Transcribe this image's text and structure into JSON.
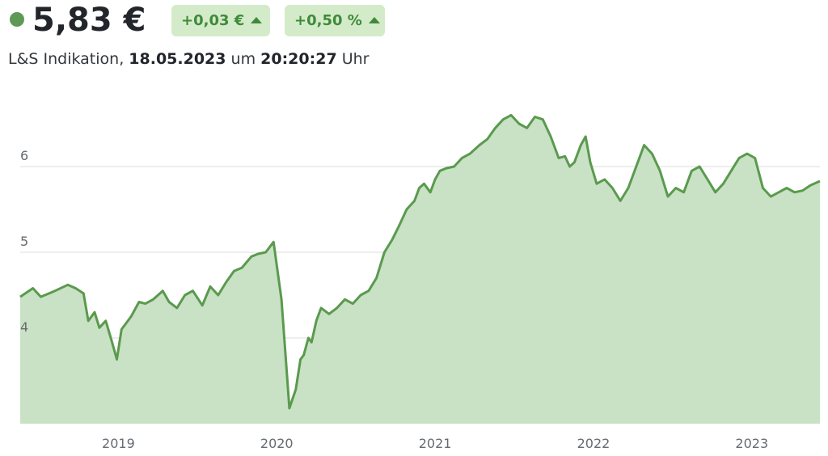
{
  "quote": {
    "price": "5,83 €",
    "change_abs": "+0,03 €",
    "change_pct": "+0,50 %",
    "source": "L&S Indikation,",
    "date": "18.05.2023",
    "um": "um",
    "time": "20:20:27",
    "uhr": "Uhr"
  },
  "colors": {
    "line": "#5a9a4e",
    "area": "#c9e1c4",
    "badge_bg": "#d4ebca",
    "badge_text": "#3f8a39",
    "dot": "#5e9a55",
    "grid": "#dcdcdc"
  },
  "chart_data": {
    "type": "area",
    "title": "",
    "xlabel": "",
    "ylabel": "",
    "ylim": [
      3.0,
      7.0
    ],
    "xlim": [
      2018.38,
      2023.43
    ],
    "yticks": [
      4,
      5,
      6
    ],
    "ytick_labels": [
      "4",
      "5",
      "6"
    ],
    "xticks": [
      2019,
      2020,
      2021,
      2022,
      2023
    ],
    "xtick_labels": [
      "2019",
      "2020",
      "2021",
      "2022",
      "2023"
    ],
    "grid": true,
    "legend": "none",
    "series": [
      {
        "x": [
          2018.38,
          2018.46,
          2018.51,
          2018.6,
          2018.68,
          2018.73,
          2018.78,
          2018.81,
          2018.85,
          2018.88,
          2018.92,
          2018.96,
          2018.99,
          2019.02,
          2019.08,
          2019.13,
          2019.17,
          2019.22,
          2019.28,
          2019.32,
          2019.37,
          2019.42,
          2019.47,
          2019.53,
          2019.58,
          2019.63,
          2019.68,
          2019.73,
          2019.78,
          2019.84,
          2019.88,
          2019.93,
          2019.98,
          2020.03,
          2020.08,
          2020.12,
          2020.15,
          2020.17,
          2020.2,
          2020.22,
          2020.25,
          2020.28,
          2020.33,
          2020.38,
          2020.43,
          2020.48,
          2020.53,
          2020.58,
          2020.63,
          2020.68,
          2020.73,
          2020.77,
          2020.82,
          2020.87,
          2020.9,
          2020.93,
          2020.97,
          2021.0,
          2021.03,
          2021.07,
          2021.12,
          2021.17,
          2021.22,
          2021.28,
          2021.33,
          2021.38,
          2021.43,
          2021.48,
          2021.53,
          2021.58,
          2021.63,
          2021.68,
          2021.73,
          2021.78,
          2021.82,
          2021.85,
          2021.88,
          2021.92,
          2021.95,
          2021.98,
          2022.02,
          2022.07,
          2022.12,
          2022.17,
          2022.22,
          2022.27,
          2022.32,
          2022.37,
          2022.42,
          2022.47,
          2022.52,
          2022.57,
          2022.62,
          2022.67,
          2022.72,
          2022.77,
          2022.82,
          2022.87,
          2022.92,
          2022.97,
          2023.02,
          2023.07,
          2023.12,
          2023.17,
          2023.22,
          2023.27,
          2023.32,
          2023.37,
          2023.43
        ],
        "y": [
          4.48,
          4.58,
          4.48,
          4.55,
          4.62,
          4.58,
          4.52,
          4.2,
          4.3,
          4.12,
          4.2,
          3.95,
          3.75,
          4.1,
          4.25,
          4.42,
          4.4,
          4.45,
          4.55,
          4.42,
          4.35,
          4.5,
          4.55,
          4.38,
          4.6,
          4.5,
          4.65,
          4.78,
          4.82,
          4.95,
          4.98,
          5.0,
          5.12,
          4.45,
          3.18,
          3.4,
          3.75,
          3.8,
          4.0,
          3.95,
          4.2,
          4.35,
          4.28,
          4.35,
          4.45,
          4.4,
          4.5,
          4.55,
          4.7,
          5.0,
          5.15,
          5.3,
          5.5,
          5.6,
          5.75,
          5.8,
          5.7,
          5.85,
          5.95,
          5.98,
          6.0,
          6.1,
          6.15,
          6.25,
          6.32,
          6.45,
          6.55,
          6.6,
          6.5,
          6.45,
          6.58,
          6.55,
          6.35,
          6.1,
          6.12,
          6.0,
          6.05,
          6.25,
          6.35,
          6.05,
          5.8,
          5.85,
          5.75,
          5.6,
          5.75,
          6.0,
          6.25,
          6.15,
          5.95,
          5.65,
          5.75,
          5.7,
          5.95,
          6.0,
          5.85,
          5.7,
          5.8,
          5.95,
          6.1,
          6.15,
          6.1,
          5.75,
          5.65,
          5.7,
          5.75,
          5.7,
          5.72,
          5.78,
          5.83
        ]
      }
    ]
  }
}
